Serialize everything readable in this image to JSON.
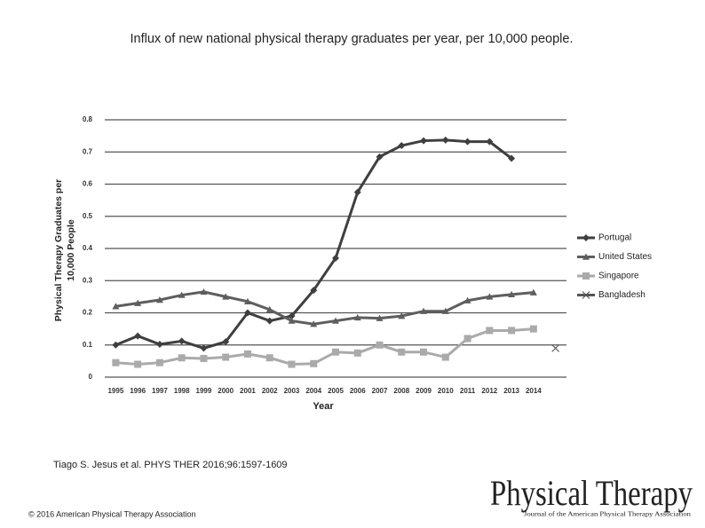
{
  "chart_data": {
    "type": "line",
    "title": "Influx of new national physical therapy graduates per year, per 10,000 people.",
    "xlabel": "Year",
    "ylabel": [
      "Physical Therapy Graduates per",
      "10,000 People"
    ],
    "categories": [
      "1995",
      "1996",
      "1997",
      "1998",
      "1999",
      "2000",
      "2001",
      "2002",
      "2003",
      "2004",
      "2005",
      "2006",
      "2007",
      "2008",
      "2009",
      "2010",
      "2011",
      "2012",
      "2013",
      "2014",
      null
    ],
    "series": [
      {
        "name": "Portugal",
        "color": "#3f3f3f",
        "marker": "diamond",
        "values": [
          0.1,
          0.128,
          0.102,
          0.112,
          0.09,
          0.11,
          0.2,
          0.175,
          0.19,
          0.27,
          0.37,
          0.575,
          0.685,
          0.72,
          0.735,
          0.737,
          0.732,
          0.732,
          0.68,
          null,
          null
        ]
      },
      {
        "name": "United States",
        "color": "#5e5e5e",
        "marker": "triangle",
        "values": [
          0.22,
          0.23,
          0.24,
          0.255,
          0.265,
          0.25,
          0.235,
          0.21,
          0.175,
          0.165,
          0.175,
          0.185,
          0.183,
          0.19,
          0.205,
          0.205,
          0.238,
          0.25,
          0.257,
          0.263,
          null
        ]
      },
      {
        "name": "Singapore",
        "color": "#aaaaaa",
        "marker": "square",
        "values": [
          0.045,
          0.04,
          0.045,
          0.06,
          0.058,
          0.062,
          0.072,
          0.06,
          0.04,
          0.042,
          0.078,
          0.075,
          0.1,
          0.078,
          0.078,
          0.062,
          0.12,
          0.145,
          0.145,
          0.15,
          null
        ]
      },
      {
        "name": "Bangladesh",
        "color": "#555555",
        "marker": "x",
        "values": [
          null,
          null,
          null,
          null,
          null,
          null,
          null,
          null,
          null,
          null,
          null,
          null,
          null,
          null,
          null,
          null,
          null,
          null,
          null,
          null,
          0.09
        ]
      }
    ],
    "ylim": [
      0,
      0.8
    ],
    "yticks": [
      0,
      0.1,
      0.2,
      0.3,
      0.4,
      0.5,
      0.6,
      0.7,
      0.8
    ],
    "grid": true,
    "legend": "right"
  },
  "footer": {
    "citation": "Tiago S. Jesus et al. PHYS THER 2016;96:1597-1609",
    "copyright": "© 2016 American Physical Therapy Association",
    "logo_title": "Physical Therapy",
    "logo_subtitle": "Journal of the American Physical Therapy Association"
  }
}
